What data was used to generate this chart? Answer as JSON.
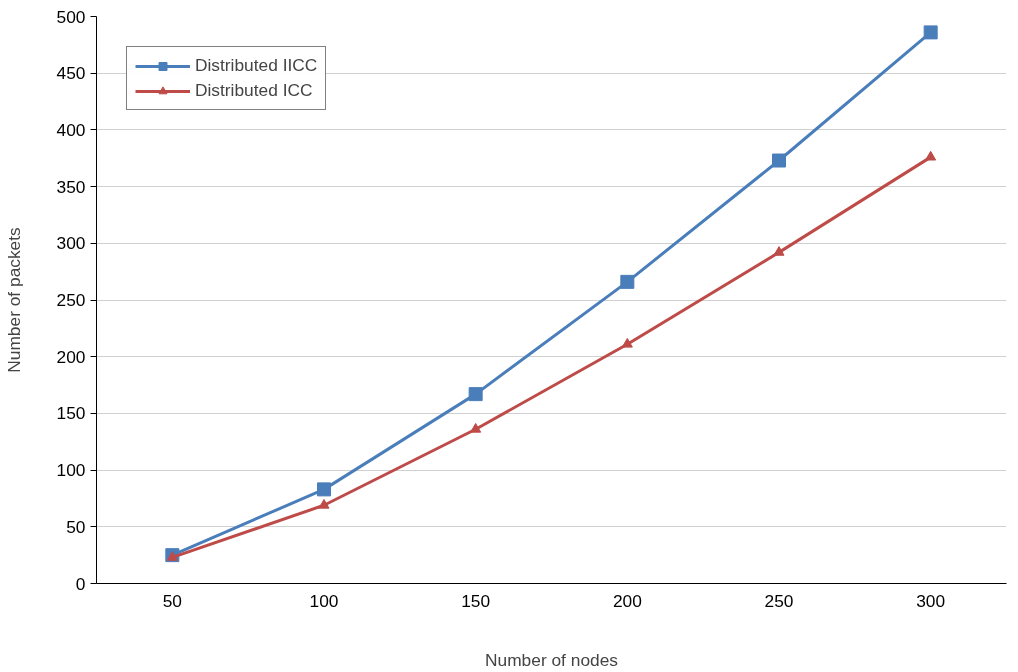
{
  "chart_data": {
    "type": "line",
    "xlabel": "Number of nodes",
    "ylabel": "Number of packets",
    "categories": [
      "50",
      "100",
      "150",
      "200",
      "250",
      "300"
    ],
    "series": [
      {
        "name": "Distributed IICC",
        "color": "#4a7ebb",
        "marker": "square",
        "values": [
          25,
          83,
          167,
          266,
          373,
          486
        ]
      },
      {
        "name": "Distributed ICC",
        "color": "#be4b48",
        "marker": "triangle",
        "values": [
          23,
          69,
          136,
          211,
          292,
          376
        ]
      }
    ],
    "ylim": [
      0,
      500
    ],
    "yticks": [
      0,
      50,
      100,
      150,
      200,
      250,
      300,
      350,
      400,
      450,
      500
    ],
    "grid": "y",
    "legend": "top left"
  }
}
